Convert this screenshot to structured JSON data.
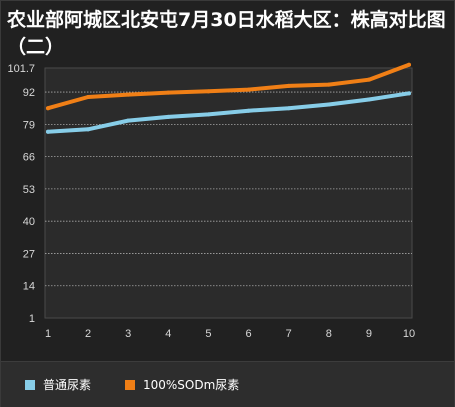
{
  "title": "农业部阿城区北安屯7月30日水稻大区：株高对比图（二）",
  "chart_data": {
    "type": "line",
    "title": "农业部阿城区北安屯7月30日水稻大区：株高对比图（二）",
    "x": [
      1,
      2,
      3,
      4,
      5,
      6,
      7,
      8,
      9,
      10
    ],
    "x_tick_labels": [
      "1",
      "2",
      "3",
      "4",
      "5",
      "6",
      "7",
      "8",
      "9",
      "10"
    ],
    "y_tick_labels": [
      "1",
      "14",
      "27",
      "40",
      "53",
      "66",
      "79",
      "92",
      "101.7"
    ],
    "y_ticks": [
      1,
      14,
      27,
      40,
      53,
      66,
      79,
      92,
      101.7
    ],
    "ylim": [
      1,
      101.7
    ],
    "xlabel": "",
    "ylabel": "",
    "grid": true,
    "legend_position": "bottom-left",
    "series": [
      {
        "name": "普通尿素",
        "color": "#87cde8",
        "values": [
          76,
          77,
          80.5,
          82,
          83,
          84.5,
          85.5,
          87,
          89,
          91.5
        ]
      },
      {
        "name": "100%SODm尿素",
        "color": "#f07f16",
        "values": [
          85.5,
          90,
          91,
          91.8,
          92.3,
          93,
          94.5,
          95,
          97,
          103
        ]
      }
    ]
  }
}
